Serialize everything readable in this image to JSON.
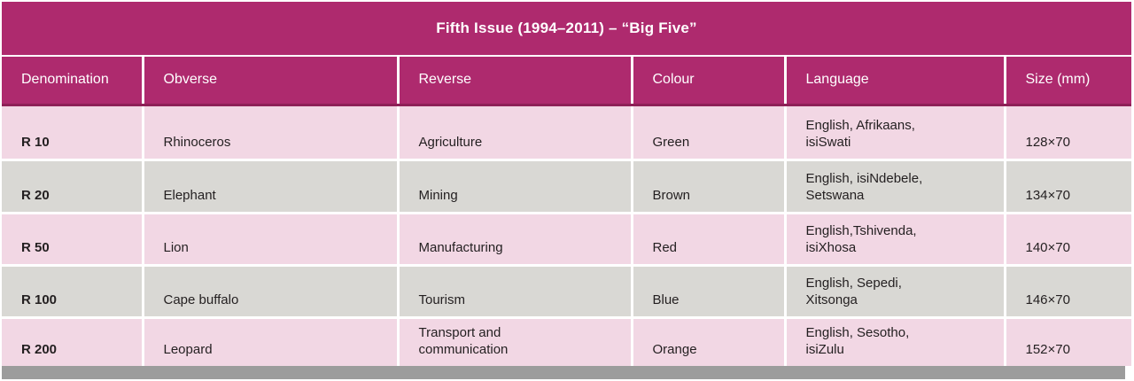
{
  "title": "Fifth Issue (1994–2011) – “Big Five”",
  "columns": {
    "denomination": "Denomination",
    "obverse": "Obverse",
    "reverse": "Reverse",
    "colour": "Colour",
    "language": "Language",
    "size": "Size (mm)"
  },
  "rows": [
    {
      "denomination": "R 10",
      "obverse": "Rhinoceros",
      "reverse": "Agriculture",
      "colour": "Green",
      "language": "English, Afrikaans,\nisiSwati",
      "size": "128×70"
    },
    {
      "denomination": "R 20",
      "obverse": "Elephant",
      "reverse": "Mining",
      "colour": "Brown",
      "language": "English, isiNdebele,\nSetswana",
      "size": "134×70"
    },
    {
      "denomination": "R 50",
      "obverse": "Lion",
      "reverse": "Manufacturing",
      "colour": "Red",
      "language": "English,Tshivenda,\nisiXhosa",
      "size": "140×70"
    },
    {
      "denomination": "R 100",
      "obverse": "Cape buffalo",
      "reverse": "Tourism",
      "colour": "Blue",
      "language": "English, Sepedi,\nXitsonga",
      "size": "146×70"
    },
    {
      "denomination": "R 200",
      "obverse": "Leopard",
      "reverse": "Transport and\ncommunication",
      "colour": "Orange",
      "language": "English, Sesotho,\nisiZulu",
      "size": "152×70"
    }
  ],
  "colors": {
    "header_magenta": "#ae2a6e",
    "header_divider_dark": "#8e2057",
    "row_pink": "#f2d7e4",
    "row_gray": "#d9d8d4",
    "bottom_bar_gray": "#9c9c9c",
    "text_dark": "#231f20",
    "header_text": "#ffffff"
  }
}
